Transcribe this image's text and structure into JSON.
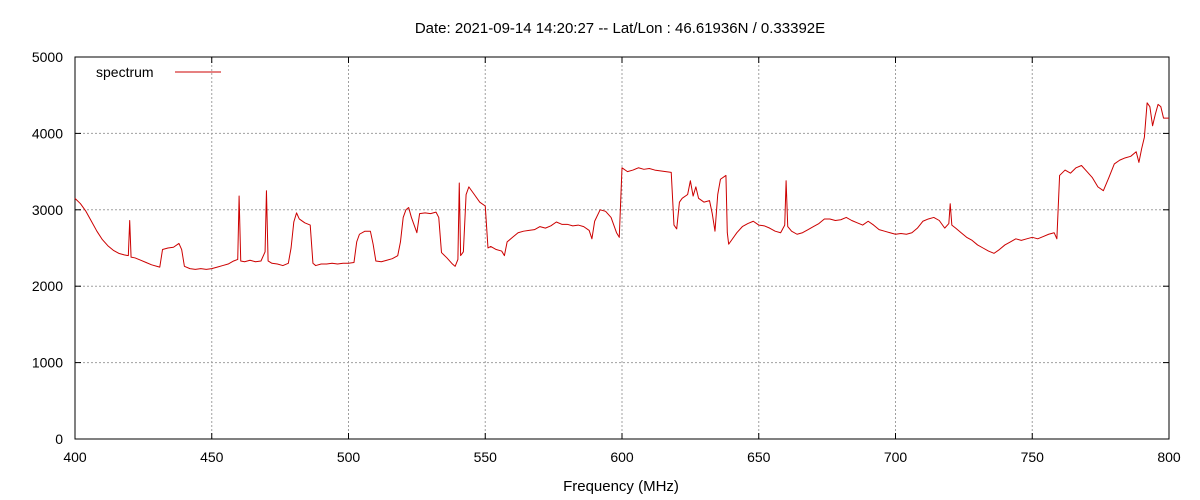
{
  "chart_data": {
    "type": "line",
    "title": "Date: 2021-09-14 14:20:27  --  Lat/Lon : 46.61936N / 0.33392E",
    "xlabel": "Frequency (MHz)",
    "ylabel": "",
    "xlim": [
      400,
      800
    ],
    "ylim": [
      0,
      5000
    ],
    "x_ticks": [
      400,
      450,
      500,
      550,
      600,
      650,
      700,
      750,
      800
    ],
    "y_ticks": [
      0,
      1000,
      2000,
      3000,
      4000,
      5000
    ],
    "grid": true,
    "legend": "top-left",
    "series": [
      {
        "name": "spectrum",
        "color": "#cc0000",
        "points": [
          [
            400,
            3150
          ],
          [
            402,
            3080
          ],
          [
            404,
            2980
          ],
          [
            406,
            2850
          ],
          [
            408,
            2720
          ],
          [
            410,
            2610
          ],
          [
            412,
            2530
          ],
          [
            414,
            2470
          ],
          [
            416,
            2430
          ],
          [
            418,
            2410
          ],
          [
            419.5,
            2400
          ],
          [
            420,
            2860
          ],
          [
            420.5,
            2380
          ],
          [
            422,
            2370
          ],
          [
            424,
            2340
          ],
          [
            426,
            2310
          ],
          [
            428,
            2280
          ],
          [
            430,
            2260
          ],
          [
            431,
            2250
          ],
          [
            432,
            2480
          ],
          [
            434,
            2500
          ],
          [
            436,
            2510
          ],
          [
            438,
            2560
          ],
          [
            439,
            2480
          ],
          [
            440,
            2260
          ],
          [
            442,
            2230
          ],
          [
            444,
            2220
          ],
          [
            446,
            2230
          ],
          [
            448,
            2220
          ],
          [
            450,
            2230
          ],
          [
            452,
            2250
          ],
          [
            454,
            2270
          ],
          [
            456,
            2290
          ],
          [
            458,
            2330
          ],
          [
            459.5,
            2350
          ],
          [
            460,
            3180
          ],
          [
            460.6,
            2330
          ],
          [
            462,
            2320
          ],
          [
            464,
            2340
          ],
          [
            466,
            2320
          ],
          [
            468,
            2330
          ],
          [
            469.5,
            2450
          ],
          [
            470,
            3250
          ],
          [
            470.6,
            2330
          ],
          [
            472,
            2300
          ],
          [
            474,
            2290
          ],
          [
            476,
            2270
          ],
          [
            478,
            2300
          ],
          [
            479,
            2500
          ],
          [
            480,
            2840
          ],
          [
            481,
            2960
          ],
          [
            482,
            2880
          ],
          [
            484,
            2830
          ],
          [
            486,
            2800
          ],
          [
            487,
            2300
          ],
          [
            488,
            2270
          ],
          [
            490,
            2290
          ],
          [
            492,
            2290
          ],
          [
            494,
            2300
          ],
          [
            496,
            2290
          ],
          [
            498,
            2300
          ],
          [
            500,
            2300
          ],
          [
            502,
            2310
          ],
          [
            503,
            2580
          ],
          [
            504,
            2680
          ],
          [
            506,
            2720
          ],
          [
            508,
            2720
          ],
          [
            509,
            2550
          ],
          [
            510,
            2330
          ],
          [
            512,
            2320
          ],
          [
            514,
            2340
          ],
          [
            516,
            2360
          ],
          [
            518,
            2400
          ],
          [
            519,
            2580
          ],
          [
            520,
            2900
          ],
          [
            521,
            3000
          ],
          [
            522,
            3030
          ],
          [
            523,
            2900
          ],
          [
            524,
            2800
          ],
          [
            525,
            2700
          ],
          [
            526,
            2950
          ],
          [
            528,
            2960
          ],
          [
            530,
            2950
          ],
          [
            532,
            2970
          ],
          [
            533,
            2900
          ],
          [
            534,
            2440
          ],
          [
            536,
            2370
          ],
          [
            538,
            2290
          ],
          [
            539,
            2260
          ],
          [
            540,
            2350
          ],
          [
            540.5,
            3350
          ],
          [
            541,
            2400
          ],
          [
            542,
            2450
          ],
          [
            543,
            3200
          ],
          [
            544,
            3300
          ],
          [
            546,
            3200
          ],
          [
            548,
            3100
          ],
          [
            550,
            3050
          ],
          [
            551,
            2500
          ],
          [
            552,
            2520
          ],
          [
            554,
            2480
          ],
          [
            556,
            2460
          ],
          [
            557,
            2400
          ],
          [
            558,
            2580
          ],
          [
            560,
            2640
          ],
          [
            562,
            2700
          ],
          [
            564,
            2720
          ],
          [
            566,
            2730
          ],
          [
            568,
            2740
          ],
          [
            570,
            2780
          ],
          [
            572,
            2760
          ],
          [
            574,
            2790
          ],
          [
            576,
            2840
          ],
          [
            578,
            2810
          ],
          [
            580,
            2810
          ],
          [
            582,
            2790
          ],
          [
            584,
            2800
          ],
          [
            586,
            2780
          ],
          [
            588,
            2730
          ],
          [
            589,
            2620
          ],
          [
            590,
            2850
          ],
          [
            592,
            3000
          ],
          [
            594,
            2980
          ],
          [
            596,
            2900
          ],
          [
            598,
            2700
          ],
          [
            599,
            2640
          ],
          [
            600,
            3550
          ],
          [
            602,
            3500
          ],
          [
            604,
            3520
          ],
          [
            606,
            3550
          ],
          [
            608,
            3530
          ],
          [
            610,
            3540
          ],
          [
            612,
            3520
          ],
          [
            614,
            3510
          ],
          [
            616,
            3500
          ],
          [
            618,
            3490
          ],
          [
            619,
            2800
          ],
          [
            620,
            2750
          ],
          [
            621,
            3100
          ],
          [
            622,
            3150
          ],
          [
            624,
            3200
          ],
          [
            625,
            3380
          ],
          [
            626,
            3180
          ],
          [
            627,
            3300
          ],
          [
            628,
            3150
          ],
          [
            630,
            3100
          ],
          [
            632,
            3120
          ],
          [
            633,
            2950
          ],
          [
            634,
            2720
          ],
          [
            635,
            3200
          ],
          [
            636,
            3400
          ],
          [
            638,
            3450
          ],
          [
            638.5,
            2700
          ],
          [
            639,
            2550
          ],
          [
            640,
            2600
          ],
          [
            642,
            2700
          ],
          [
            644,
            2780
          ],
          [
            646,
            2820
          ],
          [
            648,
            2850
          ],
          [
            650,
            2800
          ],
          [
            652,
            2790
          ],
          [
            654,
            2760
          ],
          [
            656,
            2720
          ],
          [
            658,
            2700
          ],
          [
            659.5,
            2800
          ],
          [
            660,
            3380
          ],
          [
            660.6,
            2780
          ],
          [
            662,
            2720
          ],
          [
            664,
            2680
          ],
          [
            666,
            2700
          ],
          [
            668,
            2740
          ],
          [
            670,
            2780
          ],
          [
            672,
            2820
          ],
          [
            674,
            2880
          ],
          [
            676,
            2880
          ],
          [
            678,
            2860
          ],
          [
            680,
            2870
          ],
          [
            682,
            2900
          ],
          [
            684,
            2860
          ],
          [
            686,
            2830
          ],
          [
            688,
            2800
          ],
          [
            690,
            2850
          ],
          [
            692,
            2800
          ],
          [
            694,
            2740
          ],
          [
            696,
            2720
          ],
          [
            698,
            2700
          ],
          [
            700,
            2680
          ],
          [
            702,
            2690
          ],
          [
            704,
            2680
          ],
          [
            706,
            2700
          ],
          [
            708,
            2760
          ],
          [
            710,
            2850
          ],
          [
            712,
            2880
          ],
          [
            714,
            2900
          ],
          [
            716,
            2860
          ],
          [
            718,
            2760
          ],
          [
            719.5,
            2820
          ],
          [
            720,
            3080
          ],
          [
            720.6,
            2800
          ],
          [
            722,
            2760
          ],
          [
            724,
            2700
          ],
          [
            726,
            2640
          ],
          [
            728,
            2600
          ],
          [
            730,
            2540
          ],
          [
            732,
            2500
          ],
          [
            734,
            2460
          ],
          [
            736,
            2430
          ],
          [
            738,
            2480
          ],
          [
            740,
            2540
          ],
          [
            742,
            2580
          ],
          [
            744,
            2620
          ],
          [
            746,
            2600
          ],
          [
            748,
            2620
          ],
          [
            750,
            2640
          ],
          [
            752,
            2620
          ],
          [
            754,
            2650
          ],
          [
            756,
            2680
          ],
          [
            758,
            2700
          ],
          [
            759,
            2620
          ],
          [
            760,
            3450
          ],
          [
            762,
            3520
          ],
          [
            764,
            3480
          ],
          [
            766,
            3550
          ],
          [
            768,
            3580
          ],
          [
            770,
            3500
          ],
          [
            772,
            3420
          ],
          [
            774,
            3300
          ],
          [
            776,
            3250
          ],
          [
            778,
            3420
          ],
          [
            780,
            3600
          ],
          [
            782,
            3650
          ],
          [
            784,
            3680
          ],
          [
            786,
            3700
          ],
          [
            788,
            3760
          ],
          [
            789,
            3620
          ],
          [
            790,
            3800
          ],
          [
            791,
            3950
          ],
          [
            792,
            4400
          ],
          [
            793,
            4350
          ],
          [
            794,
            4100
          ],
          [
            795,
            4250
          ],
          [
            796,
            4380
          ],
          [
            797,
            4350
          ],
          [
            798,
            4200
          ],
          [
            800,
            4200
          ]
        ]
      }
    ]
  }
}
